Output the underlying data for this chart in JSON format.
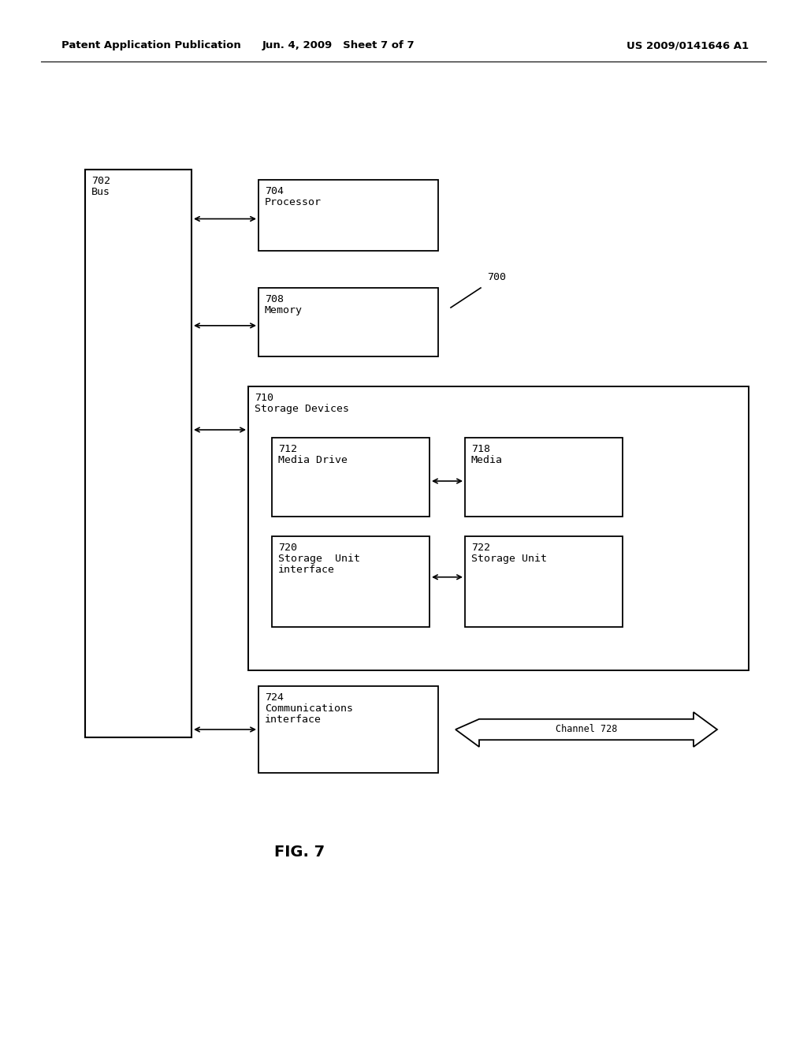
{
  "bg_color": "#ffffff",
  "header_left": "Patent Application Publication",
  "header_mid": "Jun. 4, 2009   Sheet 7 of 7",
  "header_right": "US 2009/0141646 A1",
  "fig_label": "FIG. 7",
  "line_color": "#000000",
  "text_color": "#000000",
  "mono_font": "monospace",
  "bus_label_line1": "702",
  "bus_label_line2": "Bus",
  "processor_label_line1": "704",
  "processor_label_line2": "Processor",
  "memory_label_line1": "708",
  "memory_label_line2": "Memory",
  "storage_label_line1": "710",
  "storage_label_line2": "Storage Devices",
  "media_drive_label_line1": "712",
  "media_drive_label_line2": "Media Drive",
  "media_label_line1": "718",
  "media_label_line2": "Media",
  "sui_label_line1": "720",
  "sui_label_line2": "Storage  Unit",
  "sui_label_line3": "interface",
  "su_label_line1": "722",
  "su_label_line2": "Storage Unit",
  "comm_label_line1": "724",
  "comm_label_line2": "Communications",
  "comm_label_line3": "interface",
  "channel_label": "Channel 728",
  "diagram_ref": "700"
}
